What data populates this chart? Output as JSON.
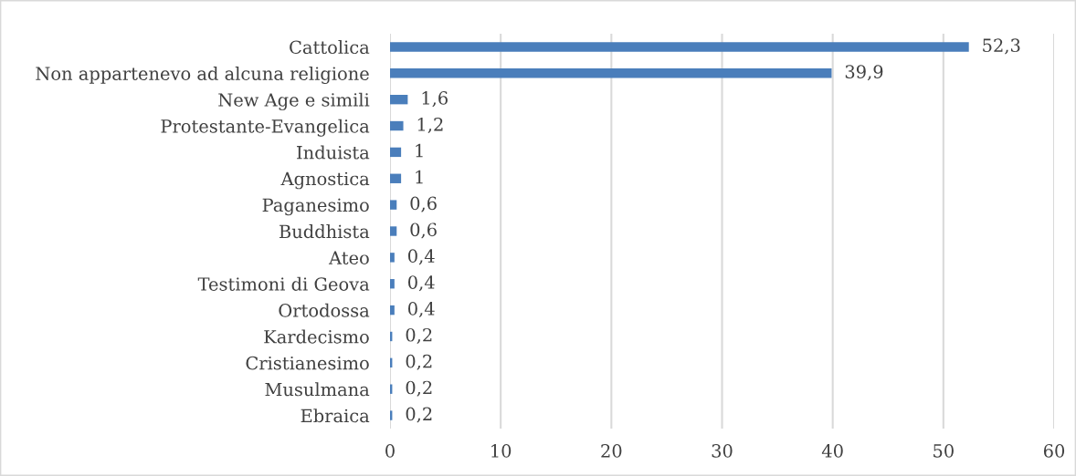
{
  "chart_data": {
    "type": "bar",
    "orientation": "horizontal",
    "categories": [
      "Cattolica",
      "Non appartenevo ad alcuna religione",
      "New Age e simili",
      "Protestante-Evangelica",
      "Induista",
      "Agnostica",
      "Paganesimo",
      "Buddhista",
      "Ateo",
      "Testimoni di Geova",
      "Ortodossa",
      "Kardecismo",
      "Cristianesimo",
      "Musulmana",
      "Ebraica"
    ],
    "values": [
      52.3,
      39.9,
      1.6,
      1.2,
      1,
      1,
      0.6,
      0.6,
      0.4,
      0.4,
      0.4,
      0.2,
      0.2,
      0.2,
      0.2
    ],
    "value_labels": [
      "52,3",
      "39,9",
      "1,6",
      "1,2",
      "1",
      "1",
      "0,6",
      "0,6",
      "0,4",
      "0,4",
      "0,4",
      "0,2",
      "0,2",
      "0,2",
      "0,2"
    ],
    "color": "#4a7ebb",
    "xlim": [
      0,
      60
    ],
    "xticks": [
      0,
      10,
      20,
      30,
      40,
      50,
      60
    ],
    "grid": "x"
  }
}
